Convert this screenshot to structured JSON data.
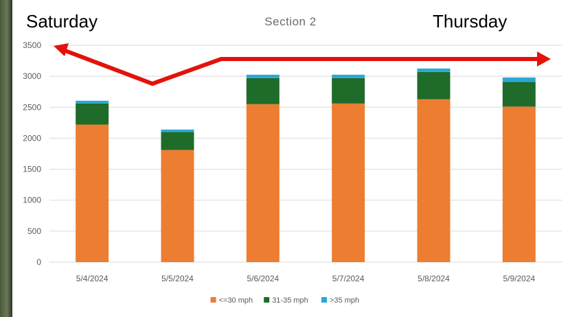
{
  "chart_data": {
    "type": "bar",
    "stacked": true,
    "title": "Section 2",
    "categories": [
      "5/4/2024",
      "5/5/2024",
      "5/6/2024",
      "5/7/2024",
      "5/8/2024",
      "5/9/2024"
    ],
    "series": [
      {
        "name": "<=30 mph",
        "color": "#ed7d31",
        "values": [
          2220,
          1810,
          2550,
          2560,
          2630,
          2510
        ]
      },
      {
        "name": "31-35 mph",
        "color": "#1e6b2a",
        "values": [
          340,
          290,
          420,
          410,
          440,
          400
        ]
      },
      {
        "name": ">35 mph",
        "color": "#2aa8d8",
        "values": [
          45,
          40,
          55,
          55,
          55,
          70
        ]
      }
    ],
    "ylim": [
      0,
      3500
    ],
    "yticks": [
      "0",
      "500",
      "1000",
      "1500",
      "2000",
      "2500",
      "3000",
      "3500"
    ],
    "grid": true,
    "legend_position": "bottom",
    "annotations": {
      "left_label": "Saturday",
      "right_label": "Thursday",
      "arrow_color": "#e3120b"
    }
  }
}
